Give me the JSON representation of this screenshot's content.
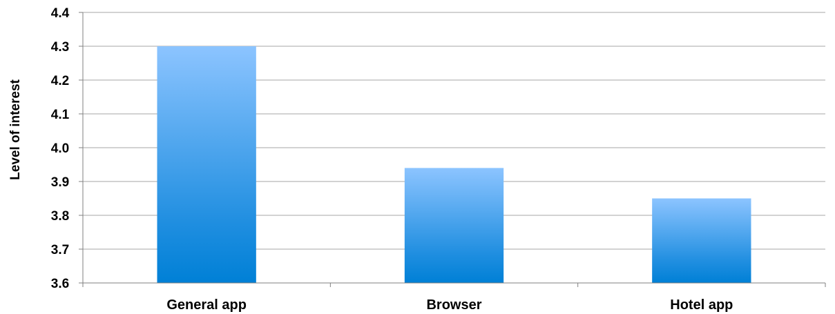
{
  "chart_data": {
    "type": "bar",
    "categories": [
      "General app",
      "Browser",
      "Hotel app"
    ],
    "values": [
      4.3,
      3.94,
      3.85
    ],
    "title": "",
    "xlabel": "",
    "ylabel": "Level of interest",
    "ylim": [
      3.6,
      4.4
    ],
    "yticks": [
      "3.6",
      "3.7",
      "3.8",
      "3.9",
      "4.0",
      "4.1",
      "4.2",
      "4.3",
      "4.4"
    ],
    "grid": true,
    "legend": "none",
    "colors": {
      "bar_top": "#8cc4ff",
      "bar_bottom": "#0080d6",
      "grid": "#a6a6a6",
      "axis": "#7f7f7f"
    }
  }
}
